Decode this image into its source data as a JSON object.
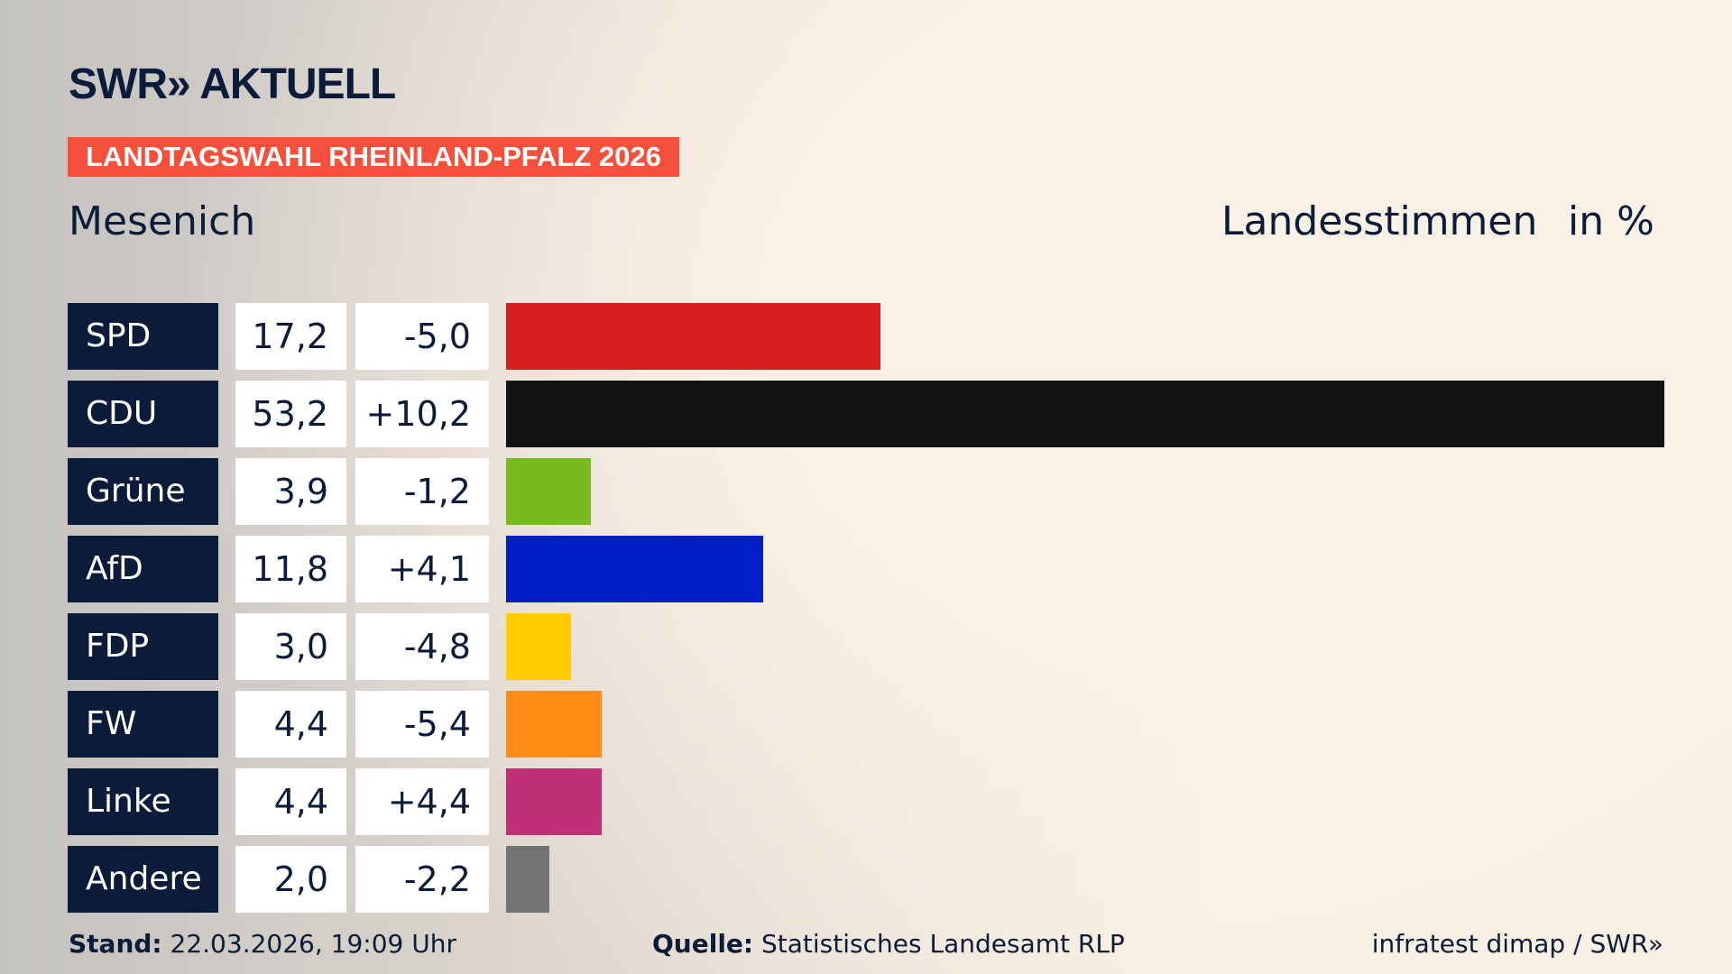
{
  "header": {
    "logo": "SWR» AKTUELL",
    "banner": "LANDTAGSWAHL RHEINLAND-PFALZ 2026",
    "region": "Mesenich",
    "measure": "Landesstimmen",
    "unit": "in %"
  },
  "chart_data": {
    "type": "bar",
    "orientation": "horizontal",
    "xlim": [
      0,
      53.2
    ],
    "categories": [
      "SPD",
      "CDU",
      "Grüne",
      "AfD",
      "FDP",
      "FW",
      "Linke",
      "Andere"
    ],
    "values": [
      "17,2",
      "53,2",
      "3,9",
      "11,8",
      "3,0",
      "4,4",
      "4,4",
      "2,0"
    ],
    "numeric_values": [
      17.2,
      53.2,
      3.9,
      11.8,
      3.0,
      4.4,
      4.4,
      2.0
    ],
    "diffs": [
      "-5,0",
      "+10,2",
      "-1,2",
      "+4,1",
      "-4,8",
      "-5,4",
      "+4,4",
      "-2,2"
    ],
    "colors": [
      "#d81f1f",
      "#121212",
      "#77bb1d",
      "#001ec8",
      "#ffcc00",
      "#ff8c17",
      "#bf3077",
      "#737373"
    ]
  },
  "footer": {
    "stand_label": "Stand:",
    "stand": "22.03.2026, 19:09 Uhr",
    "source_label": "Quelle:",
    "source": "Statistisches Landesamt RLP",
    "credit": "infratest dimap / SWR»"
  }
}
